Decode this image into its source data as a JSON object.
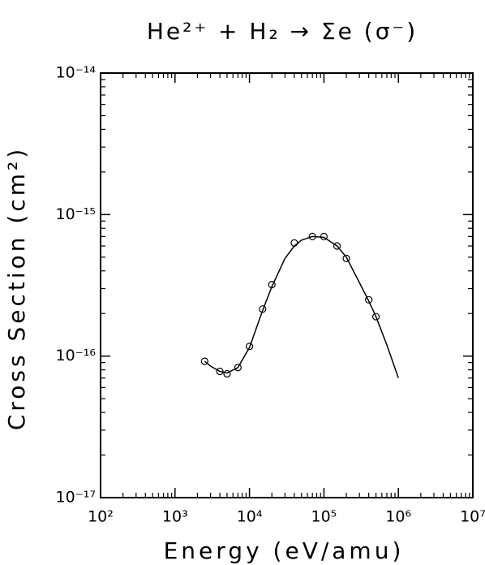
{
  "chart_data": {
    "type": "line",
    "title": "He²⁺ + H₂ → Σe (σ⁻)",
    "x_label": "Energy (eV/amu)",
    "y_label": "Cross Section (cm²)",
    "xscale": "log",
    "yscale": "log",
    "xlim": [
      100,
      10000000
    ],
    "ylim": [
      1e-17,
      1e-14
    ],
    "xticks": [
      {
        "value": 100,
        "label": "10²"
      },
      {
        "value": 1000,
        "label": "10³"
      },
      {
        "value": 10000,
        "label": "10⁴"
      },
      {
        "value": 100000,
        "label": "10⁵"
      },
      {
        "value": 1000000,
        "label": "10⁶"
      },
      {
        "value": 10000000,
        "label": "10⁷"
      }
    ],
    "yticks": [
      {
        "value": 1e-17,
        "label": "10⁻¹⁷"
      },
      {
        "value": 1e-16,
        "label": "10⁻¹⁶"
      },
      {
        "value": 1e-15,
        "label": "10⁻¹⁵"
      },
      {
        "value": 1e-14,
        "label": "10⁻¹⁴"
      }
    ],
    "minor_ticks": true,
    "series": [
      {
        "style": "markers",
        "color": "#000000",
        "x": [
          2500,
          4000,
          5000,
          7000,
          10000,
          15000,
          20000,
          40000,
          70000,
          100000,
          150000,
          200000,
          400000,
          500000
        ],
        "values": [
          9.2e-17,
          7.8e-17,
          7.5e-17,
          8.3e-17,
          1.17e-16,
          2.15e-16,
          3.2e-16,
          6.3e-16,
          7e-16,
          7e-16,
          6e-16,
          4.9e-16,
          2.5e-16,
          1.9e-16
        ]
      },
      {
        "style": "line",
        "color": "#000000",
        "x": [
          2500,
          3000,
          4000,
          5000,
          7000,
          10000,
          15000,
          20000,
          30000,
          40000,
          50000,
          70000,
          100000,
          150000,
          200000,
          300000,
          400000,
          500000,
          700000,
          1000000
        ],
        "values": [
          9.2e-17,
          8.5e-17,
          7.8e-17,
          7.6e-17,
          8.3e-17,
          1.15e-16,
          2.1e-16,
          3.1e-16,
          4.9e-16,
          6e-16,
          6.6e-16,
          7e-16,
          6.9e-16,
          6e-16,
          5e-16,
          3.3e-16,
          2.45e-16,
          1.9e-16,
          1.2e-16,
          7e-17
        ]
      }
    ]
  }
}
